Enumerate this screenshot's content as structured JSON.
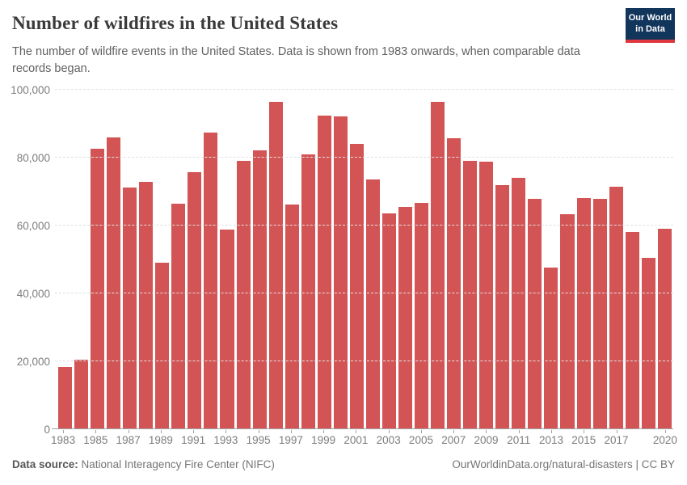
{
  "header": {
    "title": "Number of wildfires in the United States",
    "subtitle": "The number of wildfire events in the United States. Data is shown from 1983 onwards, when comparable data records began."
  },
  "logo": {
    "line1": "Our World",
    "line2": "in Data",
    "bg_color": "#12355b",
    "accent_color": "#e0373e"
  },
  "chart_data": {
    "type": "bar",
    "title": "Number of wildfires in the United States",
    "subtitle": "The number of wildfire events in the United States. Data is shown from 1983 onwards, when comparable data records began.",
    "x": [
      1983,
      1984,
      1985,
      1986,
      1987,
      1988,
      1989,
      1990,
      1991,
      1992,
      1993,
      1994,
      1995,
      1996,
      1997,
      1998,
      1999,
      2000,
      2001,
      2002,
      2003,
      2004,
      2005,
      2006,
      2007,
      2008,
      2009,
      2010,
      2011,
      2012,
      2013,
      2014,
      2015,
      2016,
      2017,
      2018,
      2019,
      2020
    ],
    "values": [
      18229,
      20493,
      82591,
      85907,
      71300,
      72750,
      48949,
      66481,
      75754,
      87394,
      58810,
      79107,
      82234,
      96363,
      66196,
      81043,
      92487,
      92250,
      84079,
      73457,
      63629,
      65461,
      66753,
      96385,
      85705,
      78979,
      78792,
      71971,
      74126,
      67774,
      47579,
      63312,
      68151,
      67743,
      71499,
      58083,
      50477,
      58950
    ],
    "bar_color": "#d35455",
    "ylim": [
      0,
      100000
    ],
    "yticks": [
      0,
      20000,
      40000,
      60000,
      80000,
      100000
    ],
    "ytick_labels": [
      "0",
      "20,000",
      "40,000",
      "60,000",
      "80,000",
      "100,000"
    ],
    "xtick_years": [
      1983,
      1985,
      1987,
      1989,
      1991,
      1993,
      1995,
      1997,
      1999,
      2001,
      2003,
      2005,
      2007,
      2009,
      2011,
      2013,
      2015,
      2017,
      2020
    ],
    "grid": true,
    "legend": false,
    "xlabel": "",
    "ylabel": ""
  },
  "footer": {
    "source_label": "Data source:",
    "source_value": "National Interagency Fire Center (NIFC)",
    "credit": "OurWorldinData.org/natural-disasters | CC BY"
  }
}
